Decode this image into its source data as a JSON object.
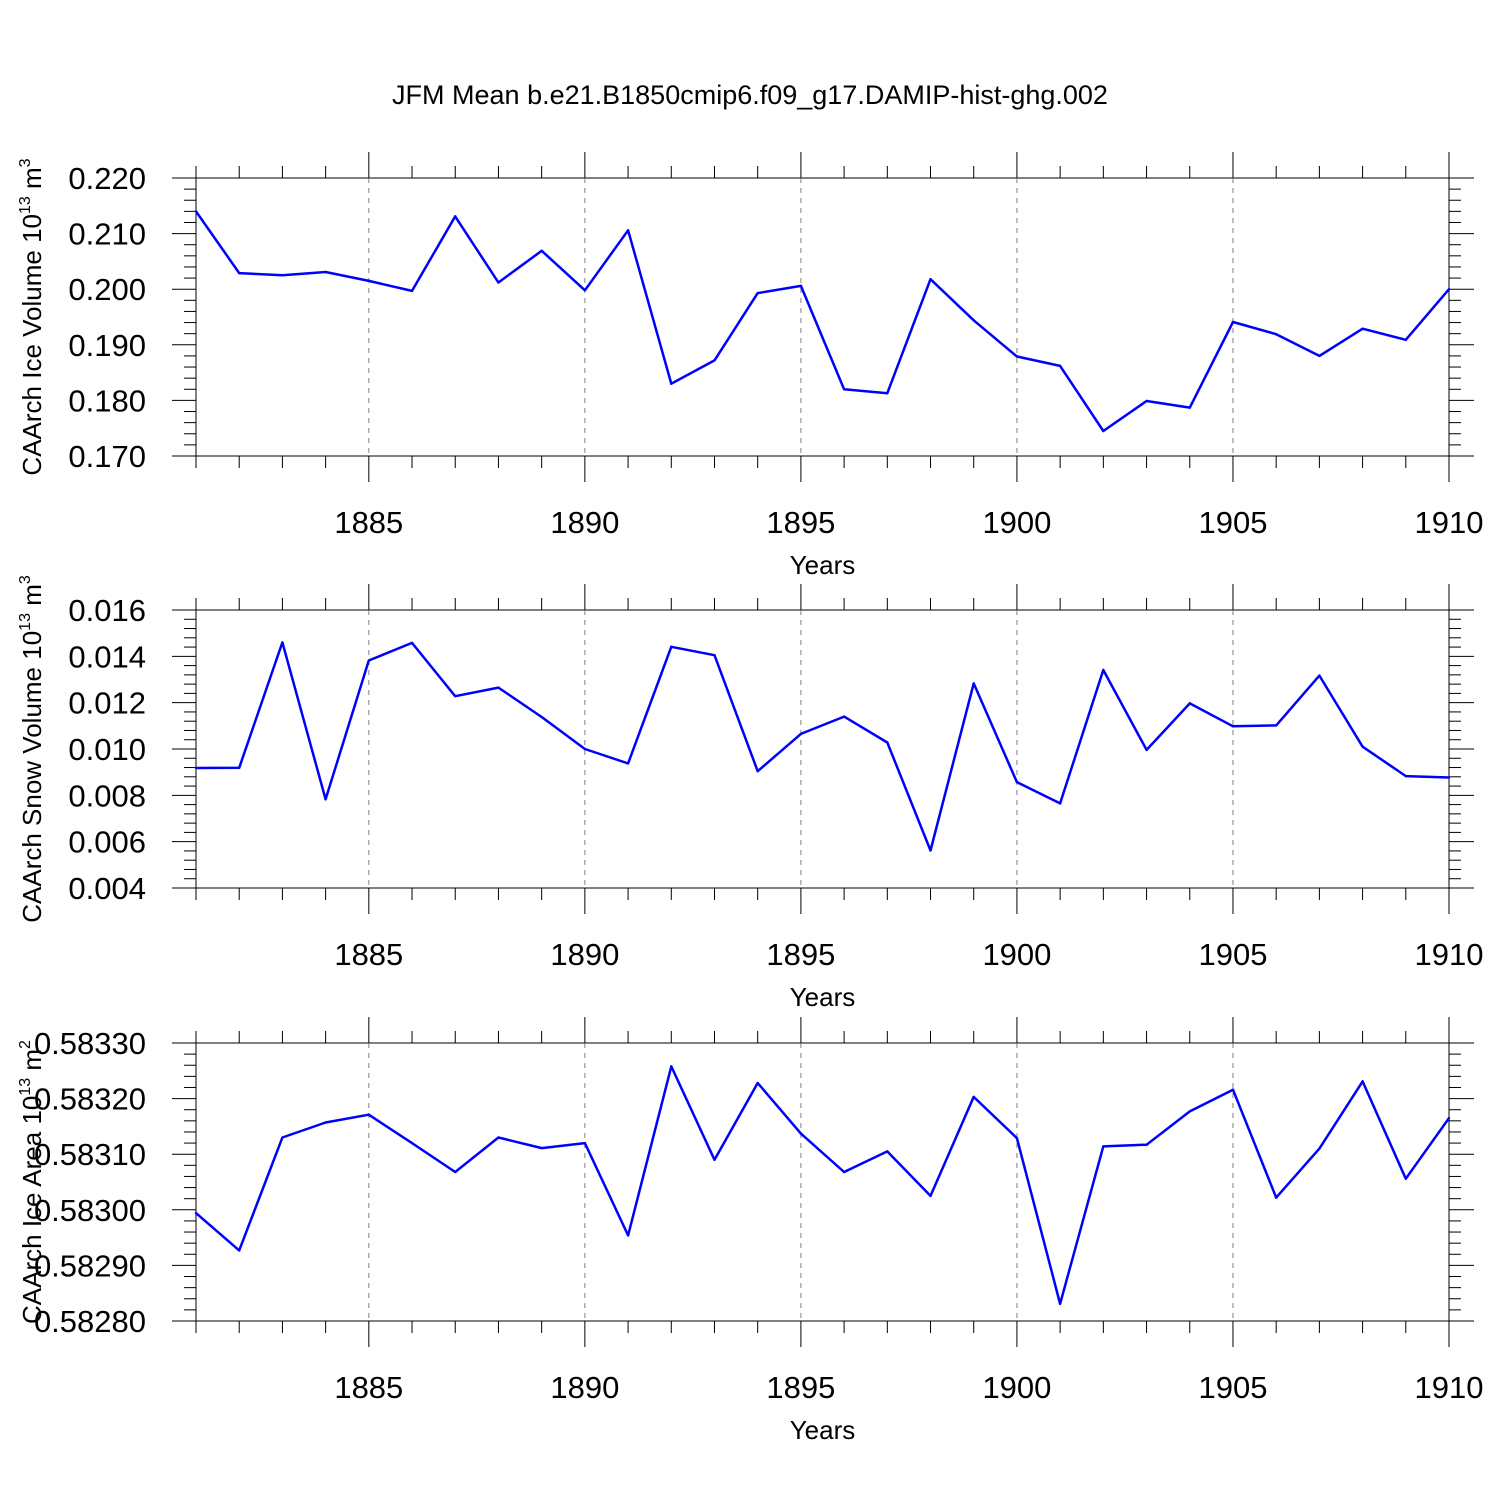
{
  "title": "JFM Mean b.e21.B1850cmip6.f09_g17.DAMIP-hist-ghg.002",
  "colors": {
    "line": "#0000ff",
    "axis": "#000000",
    "grid": "#808080"
  },
  "chart_data": [
    {
      "type": "line",
      "xlabel": "Years",
      "ylabel": "CAArch Ice Volume 10",
      "ylabel_exp": "13",
      "ylabel_unit": " m",
      "ylabel_unit_exp": "3",
      "xlim": [
        1881,
        1910
      ],
      "ylim": [
        0.17,
        0.22
      ],
      "x_ticks": [
        1885,
        1890,
        1895,
        1900,
        1905,
        1910
      ],
      "x_tick_labels": [
        "1885",
        "1890",
        "1895",
        "1900",
        "1905",
        "1910"
      ],
      "y_ticks": [
        0.17,
        0.18,
        0.19,
        0.2,
        0.21,
        0.22
      ],
      "y_tick_labels": [
        "0.170",
        "0.180",
        "0.190",
        "0.200",
        "0.210",
        "0.220"
      ],
      "grid": "vertical dashed at major x ticks",
      "x": [
        1881,
        1882,
        1883,
        1884,
        1885,
        1886,
        1887,
        1888,
        1889,
        1890,
        1891,
        1892,
        1893,
        1894,
        1895,
        1896,
        1897,
        1898,
        1899,
        1900,
        1901,
        1902,
        1903,
        1904,
        1905,
        1906,
        1907,
        1908,
        1909,
        1910
      ],
      "values": [
        0.214,
        0.2029,
        0.2025,
        0.2031,
        0.2015,
        0.1997,
        0.2131,
        0.2012,
        0.2069,
        0.1998,
        0.2106,
        0.183,
        0.1872,
        0.1993,
        0.2006,
        0.182,
        0.1813,
        0.2018,
        0.1944,
        0.1879,
        0.1862,
        0.1745,
        0.1799,
        0.1787,
        0.1941,
        0.1919,
        0.188,
        0.1929,
        0.1909,
        0.2
      ]
    },
    {
      "type": "line",
      "xlabel": "Years",
      "ylabel": "CAArch Snow Volume 10",
      "ylabel_exp": "13",
      "ylabel_unit": " m",
      "ylabel_unit_exp": "3",
      "xlim": [
        1881,
        1910
      ],
      "ylim": [
        0.004,
        0.016
      ],
      "x_ticks": [
        1885,
        1890,
        1895,
        1900,
        1905,
        1910
      ],
      "x_tick_labels": [
        "1885",
        "1890",
        "1895",
        "1900",
        "1905",
        "1910"
      ],
      "y_ticks": [
        0.004,
        0.006,
        0.008,
        0.01,
        0.012,
        0.014,
        0.016
      ],
      "y_tick_labels": [
        "0.004",
        "0.006",
        "0.008",
        "0.010",
        "0.012",
        "0.014",
        "0.016"
      ],
      "grid": "vertical dashed at major x ticks",
      "x": [
        1881,
        1882,
        1883,
        1884,
        1885,
        1886,
        1887,
        1888,
        1889,
        1890,
        1891,
        1892,
        1893,
        1894,
        1895,
        1896,
        1897,
        1898,
        1899,
        1900,
        1901,
        1902,
        1903,
        1904,
        1905,
        1906,
        1907,
        1908,
        1909,
        1910
      ],
      "values": [
        0.00918,
        0.00919,
        0.0146,
        0.00783,
        0.01382,
        0.01458,
        0.01228,
        0.01265,
        0.01138,
        0.01,
        0.00938,
        0.01441,
        0.01405,
        0.00904,
        0.01065,
        0.0114,
        0.01028,
        0.00562,
        0.01283,
        0.00857,
        0.00765,
        0.01341,
        0.00996,
        0.01197,
        0.01098,
        0.01102,
        0.01317,
        0.0101,
        0.00883,
        0.00877
      ]
    },
    {
      "type": "line",
      "xlabel": "Years",
      "ylabel": "CAArch Ice Area 10",
      "ylabel_exp": "13",
      "ylabel_unit": " m",
      "ylabel_unit_exp": "2",
      "xlim": [
        1881,
        1910
      ],
      "ylim": [
        0.5828,
        0.5833
      ],
      "x_ticks": [
        1885,
        1890,
        1895,
        1900,
        1905,
        1910
      ],
      "x_tick_labels": [
        "1885",
        "1890",
        "1895",
        "1900",
        "1905",
        "1910"
      ],
      "y_ticks": [
        0.5828,
        0.5829,
        0.583,
        0.5831,
        0.5832,
        0.5833
      ],
      "y_tick_labels": [
        "0.58280",
        "0.58290",
        "0.58300",
        "0.58310",
        "0.58320",
        "0.58330"
      ],
      "grid": "vertical dashed at major x ticks",
      "x": [
        1881,
        1882,
        1883,
        1884,
        1885,
        1886,
        1887,
        1888,
        1889,
        1890,
        1891,
        1892,
        1893,
        1894,
        1895,
        1896,
        1897,
        1898,
        1899,
        1900,
        1901,
        1902,
        1903,
        1904,
        1905,
        1906,
        1907,
        1908,
        1909,
        1910
      ],
      "values": [
        0.582994,
        0.582927,
        0.58313,
        0.583157,
        0.583171,
        0.58312,
        0.583068,
        0.58313,
        0.583111,
        0.58312,
        0.582954,
        0.583258,
        0.58309,
        0.583228,
        0.583137,
        0.583068,
        0.583105,
        0.583025,
        0.583203,
        0.583129,
        0.582831,
        0.583114,
        0.583117,
        0.583177,
        0.583216,
        0.583022,
        0.58311,
        0.583231,
        0.583056,
        0.583165
      ]
    }
  ]
}
